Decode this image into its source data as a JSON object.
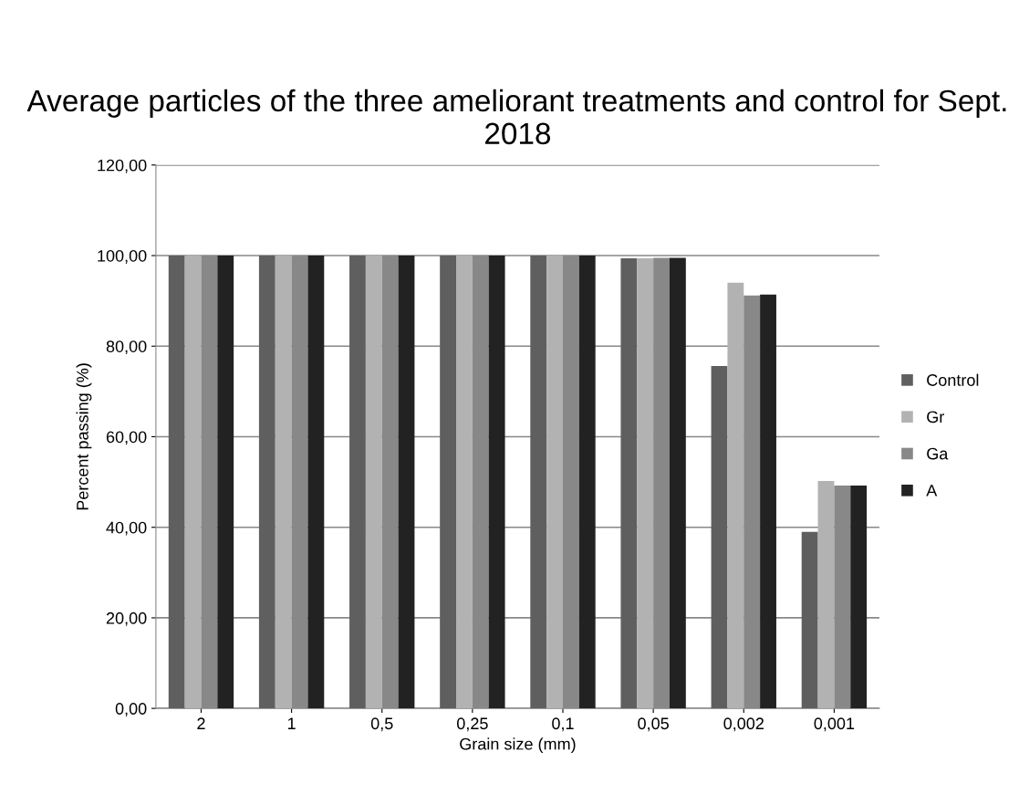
{
  "chart_data": {
    "type": "bar",
    "title": "Average particles of the three ameliorant treatments and control for Sept. 2018",
    "xlabel": "Grain size (mm)",
    "ylabel": "Percent passing (%)",
    "categories": [
      "2",
      "1",
      "0,5",
      "0,25",
      "0,1",
      "0,05",
      "0,002",
      "0,001"
    ],
    "series": [
      {
        "name": "Control",
        "color": "#5f5f5f",
        "values": [
          100,
          100,
          100,
          100,
          100,
          99.4,
          75.6,
          39.0
        ]
      },
      {
        "name": "Gr",
        "color": "#b2b2b2",
        "values": [
          100,
          100,
          100,
          100,
          100,
          99.4,
          94.0,
          50.2
        ]
      },
      {
        "name": "Ga",
        "color": "#888888",
        "values": [
          100,
          100,
          100,
          100,
          100,
          99.5,
          91.2,
          49.2
        ]
      },
      {
        "name": "A",
        "color": "#222222",
        "values": [
          100,
          100,
          100,
          100,
          100,
          99.5,
          91.4,
          49.2
        ]
      }
    ],
    "ylim": [
      0,
      120
    ],
    "yticks": [
      {
        "value": 0,
        "label": "0,00"
      },
      {
        "value": 20,
        "label": "20,00"
      },
      {
        "value": 40,
        "label": "40,00"
      },
      {
        "value": 60,
        "label": "60,00"
      },
      {
        "value": 80,
        "label": "80,00"
      },
      {
        "value": 100,
        "label": "100,00"
      },
      {
        "value": 120,
        "label": "120,00"
      }
    ],
    "grid": "y",
    "legend": "right"
  }
}
